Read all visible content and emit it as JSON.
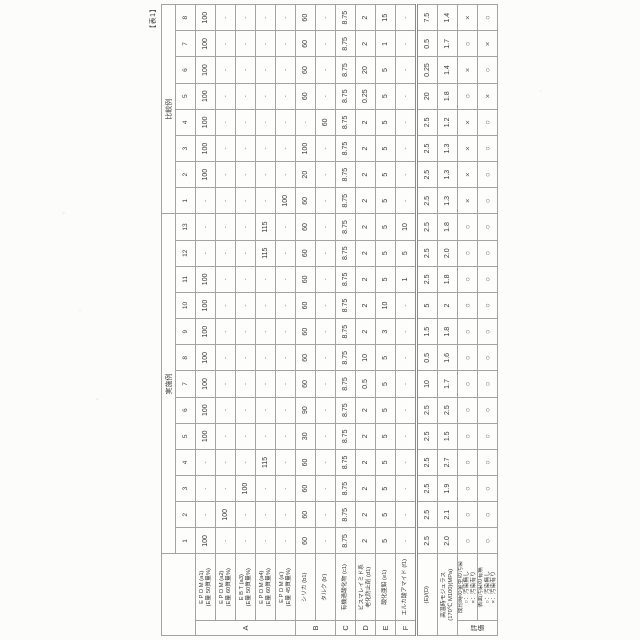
{
  "page": {
    "caption": "【表1】"
  },
  "table": {
    "col_groups": [
      {
        "label": "実施例",
        "count": 13
      },
      {
        "label": "比較例",
        "count": 8
      }
    ],
    "example_numbers": [
      "1",
      "2",
      "3",
      "4",
      "5",
      "6",
      "7",
      "8",
      "9",
      "10",
      "11",
      "12",
      "13"
    ],
    "comparative_numbers": [
      "1",
      "2",
      "3",
      "4",
      "5",
      "6",
      "7",
      "8"
    ],
    "rows": [
      {
        "id": "a1",
        "group": "A",
        "group_span": 5,
        "label": [
          "E P D M (a1)",
          "(E量 50質量%)"
        ],
        "values": [
          "100",
          "-",
          "-",
          "-",
          "100",
          "100",
          "100",
          "100",
          "100",
          "100",
          "100",
          "-",
          "-",
          "-",
          "100",
          "100",
          "100",
          "100",
          "100",
          "100",
          "100"
        ]
      },
      {
        "id": "a2",
        "label": [
          "E P D M (a2)",
          "(E量 60質量%)"
        ],
        "values": [
          "-",
          "100",
          "-",
          "-",
          "-",
          "-",
          "-",
          "-",
          "-",
          "-",
          "-",
          "-",
          "-",
          "-",
          "-",
          "-",
          "-",
          "-",
          "-",
          "-",
          "-"
        ]
      },
      {
        "id": "a3",
        "label": [
          "E B T  (a3)",
          "(E量 50質量%)"
        ],
        "values": [
          "-",
          "-",
          "100",
          "-",
          "-",
          "-",
          "-",
          "-",
          "-",
          "-",
          "-",
          "-",
          "-",
          "-",
          "-",
          "-",
          "-",
          "-",
          "-",
          "-",
          "-"
        ]
      },
      {
        "id": "a4",
        "label": [
          "E P D M (a4)",
          "(E量 60質量%)"
        ],
        "values": [
          "-",
          "-",
          "-",
          "115",
          "-",
          "-",
          "-",
          "-",
          "-",
          "-",
          "-",
          "115",
          "115",
          "-",
          "-",
          "-",
          "-",
          "-",
          "-",
          "-",
          "-"
        ]
      },
      {
        "id": "a-dash",
        "label": [
          "E P D M (a')",
          "(E量 45質量%)"
        ],
        "values": [
          "-",
          "-",
          "-",
          "-",
          "-",
          "-",
          "-",
          "-",
          "-",
          "-",
          "-",
          "-",
          "-",
          "100",
          "-",
          "-",
          "-",
          "-",
          "-",
          "-",
          "-"
        ]
      },
      {
        "id": "b1",
        "group": "B",
        "group_span": 2,
        "label": [
          "シリカ (b1)"
        ],
        "values": [
          "60",
          "60",
          "60",
          "60",
          "30",
          "90",
          "60",
          "60",
          "60",
          "60",
          "60",
          "60",
          "60",
          "60",
          "20",
          "100",
          "-",
          "60",
          "60",
          "60",
          "60"
        ]
      },
      {
        "id": "b-dash",
        "label": [
          "タルク (b')"
        ],
        "values": [
          "-",
          "-",
          "-",
          "-",
          "-",
          "-",
          "-",
          "-",
          "-",
          "-",
          "-",
          "-",
          "-",
          "-",
          "-",
          "-",
          "60",
          "-",
          "-",
          "-",
          "-"
        ]
      },
      {
        "id": "c1",
        "group": "C",
        "group_span": 1,
        "label": [
          "有機過酸化物 (c1)"
        ],
        "values": [
          "8.75",
          "8.75",
          "8.75",
          "8.75",
          "8.75",
          "8.75",
          "8.75",
          "8.75",
          "8.75",
          "8.75",
          "8.75",
          "8.75",
          "8.75",
          "8.75",
          "8.75",
          "8.75",
          "8.75",
          "8.75",
          "8.75",
          "8.75",
          "8.75"
        ]
      },
      {
        "id": "d1",
        "group": "D",
        "group_span": 1,
        "label": [
          "ビスマレイミド系",
          "老化防止剤 (d1)"
        ],
        "values": [
          "2",
          "2",
          "2",
          "2",
          "2",
          "2",
          "0.5",
          "10",
          "2",
          "2",
          "2",
          "2",
          "2",
          "2",
          "2",
          "2",
          "2",
          "0.25",
          "20",
          "2",
          "2"
        ]
      },
      {
        "id": "e1",
        "group": "E",
        "group_span": 1,
        "label": [
          "酸化亜鉛 (e1)"
        ],
        "values": [
          "5",
          "5",
          "5",
          "5",
          "5",
          "5",
          "5",
          "5",
          "3",
          "10",
          "5",
          "5",
          "5",
          "5",
          "5",
          "5",
          "5",
          "5",
          "5",
          "1",
          "15"
        ]
      },
      {
        "id": "f1",
        "group": "F",
        "group_span": 1,
        "label": [
          "エルカ酸アマイド (f1)"
        ],
        "values": [
          "-",
          "-",
          "-",
          "-",
          "-",
          "-",
          "-",
          "-",
          "-",
          "-",
          "1",
          "5",
          "10",
          "-",
          "-",
          "-",
          "-",
          "-",
          "-",
          "-",
          "-"
        ]
      },
      {
        "id": "ratio",
        "label_span": 2,
        "thick_top": true,
        "label": [
          "(E)/(D)"
        ],
        "values": [
          "2.5",
          "2.5",
          "2.5",
          "2.5",
          "2.5",
          "2.5",
          "10",
          "0.5",
          "1.5",
          "5",
          "2.5",
          "2.5",
          "2.5",
          "2.5",
          "2.5",
          "2.5",
          "2.5",
          "20",
          "0.25",
          "0.5",
          "7.5"
        ]
      },
      {
        "id": "modulus",
        "label_span": 2,
        "label": [
          "高温時モジュラス",
          "(170℃ M100)(MPa)"
        ],
        "values": [
          "2.0",
          "2.1",
          "1.9",
          "2.7",
          "1.5",
          "2.5",
          "1.7",
          "1.6",
          "1.8",
          "2",
          "1.8",
          "2.0",
          "1.8",
          "1.3",
          "1.3",
          "1.3",
          "1.2",
          "1.8",
          "1.4",
          "1.7",
          "1.4"
        ]
      },
      {
        "id": "mold-fouling",
        "group": "評価",
        "group_span": 2,
        "group_vertical": true,
        "label": [
          "成形時の金型の汚染",
          "○：汚染無し",
          "×：汚染有り"
        ],
        "values": [
          "○",
          "○",
          "○",
          "○",
          "○",
          "○",
          "○",
          "○",
          "○",
          "○",
          "○",
          "○",
          "○",
          "×",
          "×",
          "×",
          "×",
          "○",
          "×",
          "○",
          "×"
        ]
      },
      {
        "id": "surface-fouling",
        "label": [
          "表面汚染の有無",
          "○：汚染無し",
          "×：汚染有り"
        ],
        "values": [
          "○",
          "○",
          "○",
          "○",
          "○",
          "○",
          "○",
          "○",
          "○",
          "○",
          "○",
          "○",
          "○",
          "○",
          "○",
          "○",
          "○",
          "×",
          "○",
          "×",
          "○"
        ]
      }
    ]
  }
}
